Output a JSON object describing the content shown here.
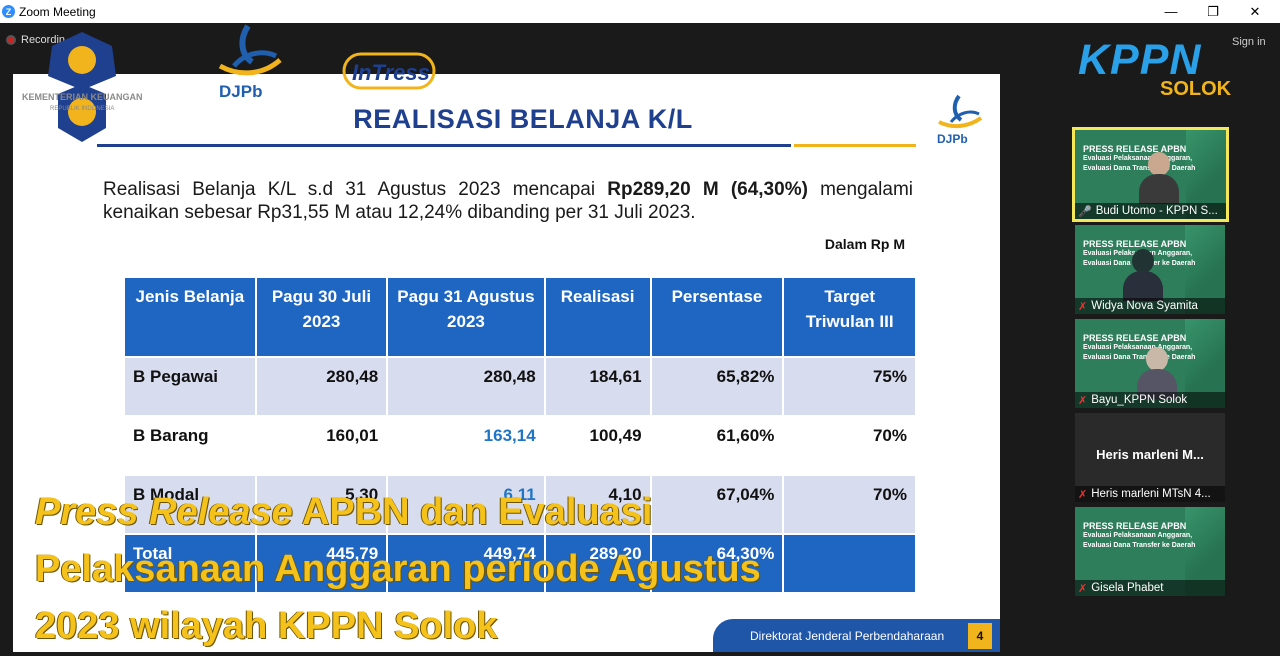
{
  "window": {
    "title": "Zoom Meeting",
    "min": "—",
    "max": "❐",
    "close": "✕"
  },
  "recording": {
    "label": "Recordin"
  },
  "signin": "Sign in",
  "logos": {
    "kemenkeu_text": "KEMENTERIAN KEUANGAN",
    "kemenkeu_sub": "REPUBLIK INDONESIA",
    "djpb": "DJPb",
    "intress": "InTress",
    "kppn": "KPPN",
    "kppn_sub": "SOLOK"
  },
  "slide": {
    "title": "REALISASI BELANJA K/L",
    "summary_pre": "Realisasi Belanja K/L s.d 31 Agustus 2023 mencapai ",
    "summary_bold": "Rp289,20 M (64,30%)",
    "summary_post": " mengalami kenaikan sebesar Rp31,55 M atau 12,24% dibanding per 31 Juli 2023.",
    "unit": "Dalam Rp M",
    "headers": [
      "Jenis Belanja",
      "Pagu 30 Juli 2023",
      "Pagu 31 Agustus 2023",
      "Realisasi",
      "Persentase",
      "Target Triwulan III"
    ],
    "rows": [
      [
        "B Pegawai",
        "280,48",
        "280,48",
        "184,61",
        "65,82%",
        "75%"
      ],
      [
        "B Barang",
        "160,01",
        "163,14",
        "100,49",
        "61,60%",
        "70%"
      ],
      [
        "B Modal",
        "5,30",
        "6,11",
        "4,10",
        "67,04%",
        "70%"
      ],
      [
        "Total",
        "445,79",
        "449,74",
        "289,20",
        "64,30%",
        ""
      ]
    ],
    "footer": "Direktorat Jenderal Perbendaharaan",
    "page": "4"
  },
  "participants": [
    {
      "name": "Budi Utomo - KPPN S...",
      "muted": false,
      "active": true
    },
    {
      "name": "Widya Nova Syamita",
      "muted": true
    },
    {
      "name": "Bayu_KPPN Solok",
      "muted": true
    },
    {
      "name": "Heris marleni MTsN 4...",
      "muted": true,
      "big": "Heris marleni M..."
    },
    {
      "name": "Gisela Phabet",
      "muted": true
    }
  ],
  "tile_text": {
    "line1": "PRESS RELEASE APBN",
    "line2": "Evaluasi Pelaksanaan Anggaran,",
    "line3": "Evaluasi Dana Transfer ke Daerah"
  },
  "caption": {
    "italic": "Press Release",
    "rest1": " APBN dan Evaluasi",
    "line2": "Pelaksanaan Anggaran periode Agustus",
    "line3": "2023 wilayah KPPN Solok"
  }
}
